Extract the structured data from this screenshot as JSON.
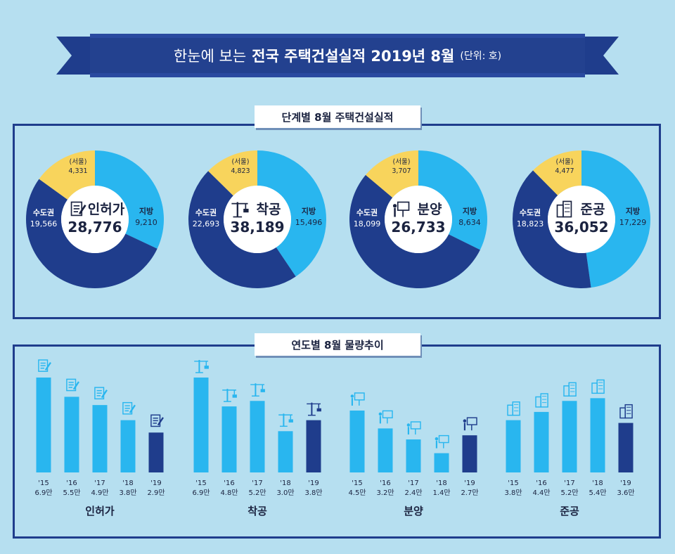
{
  "banner": {
    "prefix": "한눈에 보는",
    "title": "전국 주택건설실적 2019년 8월",
    "unit": "(단위: 호)"
  },
  "sections": {
    "stage_label": "단계별 8월 주택건설실적",
    "year_label": "연도별 8월 물량추이"
  },
  "colors": {
    "metro": "#1f3d8c",
    "local": "#29b6ef",
    "seoul": "#f8d45c",
    "bar_past": "#29b6ef",
    "bar_current": "#1f3d8c",
    "frame": "#1f3d8c"
  },
  "chart_data": [
    {
      "type": "pie",
      "title": "인허가",
      "total": "28,776",
      "icon": "permit-document-icon",
      "slices": [
        {
          "label": "수도권",
          "value": 19566,
          "value_text": "19,566"
        },
        {
          "label": "지방",
          "value": 9210,
          "value_text": "9,210"
        }
      ],
      "sub": {
        "label": "(서울)",
        "value": 4331,
        "value_text": "4,331"
      }
    },
    {
      "type": "pie",
      "title": "착공",
      "total": "38,189",
      "icon": "crane-icon",
      "slices": [
        {
          "label": "수도권",
          "value": 22693,
          "value_text": "22,693"
        },
        {
          "label": "지방",
          "value": 15496,
          "value_text": "15,496"
        }
      ],
      "sub": {
        "label": "(서울)",
        "value": 4823,
        "value_text": "4,823"
      }
    },
    {
      "type": "pie",
      "title": "분양",
      "total": "26,733",
      "icon": "presentation-board-icon",
      "slices": [
        {
          "label": "수도권",
          "value": 18099,
          "value_text": "18,099"
        },
        {
          "label": "지방",
          "value": 8634,
          "value_text": "8,634"
        }
      ],
      "sub": {
        "label": "(서울)",
        "value": 3707,
        "value_text": "3,707"
      }
    },
    {
      "type": "pie",
      "title": "준공",
      "total": "36,052",
      "icon": "apartment-building-icon",
      "slices": [
        {
          "label": "수도권",
          "value": 18823,
          "value_text": "18,823"
        },
        {
          "label": "지방",
          "value": 17229,
          "value_text": "17,229"
        }
      ],
      "sub": {
        "label": "(서울)",
        "value": 4477,
        "value_text": "4,477"
      }
    },
    {
      "type": "bar",
      "title": "인허가",
      "icon": "permit-document-icon",
      "categories": [
        "'15",
        "'16",
        "'17",
        "'18",
        "'19"
      ],
      "values": [
        6.9,
        5.5,
        4.9,
        3.8,
        2.9
      ],
      "value_labels": [
        "6.9만",
        "5.5만",
        "4.9만",
        "3.8만",
        "2.9만"
      ]
    },
    {
      "type": "bar",
      "title": "착공",
      "icon": "crane-icon",
      "categories": [
        "'15",
        "'16",
        "'17",
        "'18",
        "'19"
      ],
      "values": [
        6.9,
        4.8,
        5.2,
        3.0,
        3.8
      ],
      "value_labels": [
        "6.9만",
        "4.8만",
        "5.2만",
        "3.0만",
        "3.8만"
      ]
    },
    {
      "type": "bar",
      "title": "분양",
      "icon": "presentation-board-icon",
      "categories": [
        "'15",
        "'16",
        "'17",
        "'18",
        "'19"
      ],
      "values": [
        4.5,
        3.2,
        2.4,
        1.4,
        2.7
      ],
      "value_labels": [
        "4.5만",
        "3.2만",
        "2.4만",
        "1.4만",
        "2.7만"
      ]
    },
    {
      "type": "bar",
      "title": "준공",
      "icon": "apartment-building-icon",
      "categories": [
        "'15",
        "'16",
        "'17",
        "'18",
        "'19"
      ],
      "values": [
        3.8,
        4.4,
        5.2,
        5.4,
        3.6
      ],
      "value_labels": [
        "3.8만",
        "4.4만",
        "5.2만",
        "5.4만",
        "3.6만"
      ]
    }
  ]
}
